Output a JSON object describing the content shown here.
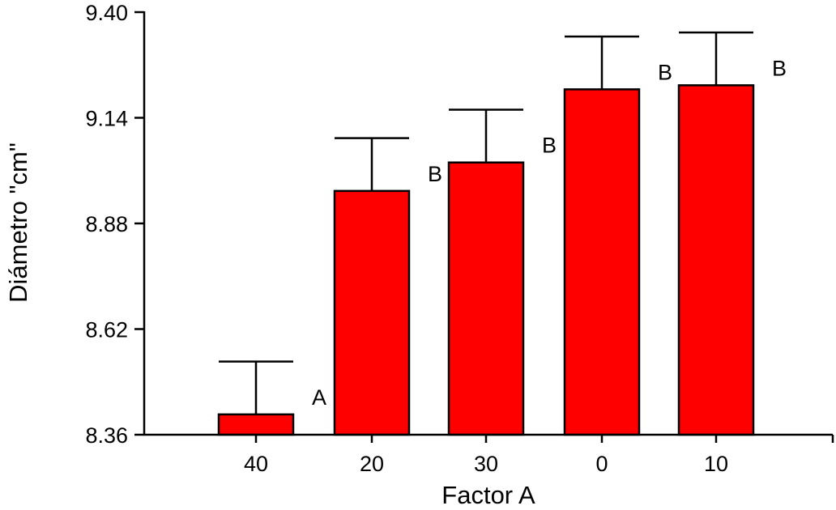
{
  "chart_data": {
    "type": "bar",
    "title": "",
    "xlabel": "Factor A",
    "ylabel": "Diámetro \"cm\"",
    "categories": [
      "40",
      "20",
      "30",
      "0",
      "10"
    ],
    "values": [
      8.41,
      8.96,
      9.03,
      9.21,
      9.22
    ],
    "error_upper": [
      8.54,
      9.09,
      9.16,
      9.34,
      9.35
    ],
    "group_letters": [
      "A",
      "B",
      "B",
      "B",
      "B"
    ],
    "ylim": [
      8.36,
      9.4
    ],
    "yticks": [
      8.36,
      8.62,
      8.88,
      9.14,
      9.4
    ],
    "ytick_labels": [
      "8.36",
      "8.62",
      "8.88",
      "9.14",
      "9.40"
    ],
    "grid": false,
    "legend": "none",
    "colors": {
      "bar_fill": "#ff0000",
      "bar_stroke": "#000000",
      "axis": "#000000",
      "text": "#000000"
    }
  }
}
